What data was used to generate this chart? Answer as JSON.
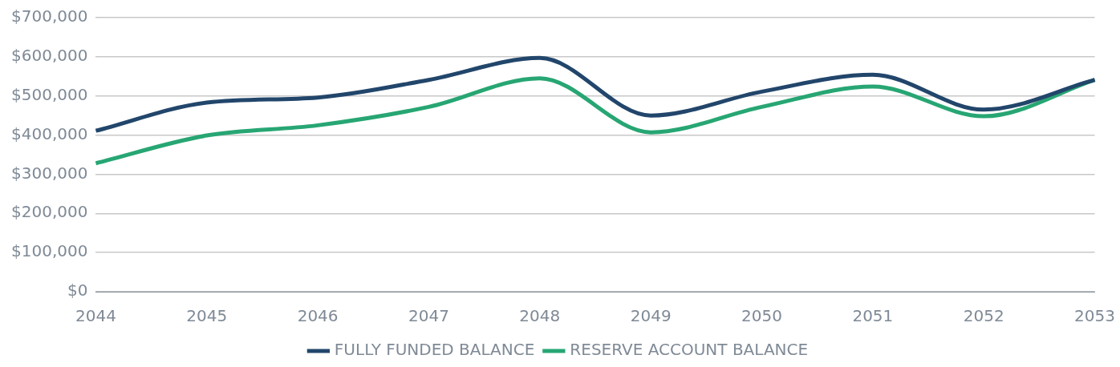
{
  "chart_data": {
    "type": "line",
    "categories": [
      "2044",
      "2045",
      "2046",
      "2047",
      "2048",
      "2049",
      "2050",
      "2051",
      "2052",
      "2053"
    ],
    "series": [
      {
        "name": "FULLY FUNDED BALANCE",
        "color": "#22466b",
        "values": [
          411000,
          483000,
          496000,
          541000,
          597000,
          450000,
          511000,
          554000,
          465000,
          541000
        ]
      },
      {
        "name": "RESERVE ACCOUNT BALANCE",
        "color": "#27a673",
        "values": [
          328000,
          399000,
          425000,
          472000,
          545000,
          407000,
          472000,
          524000,
          448000,
          541000
        ]
      }
    ],
    "ylim": [
      0,
      700000
    ],
    "yticks": [
      {
        "value": 0,
        "label": "$0"
      },
      {
        "value": 100000,
        "label": "$100,000"
      },
      {
        "value": 200000,
        "label": "$200,000"
      },
      {
        "value": 300000,
        "label": "$300,000"
      },
      {
        "value": 400000,
        "label": "$400,000"
      },
      {
        "value": 500000,
        "label": "$500,000"
      },
      {
        "value": 600000,
        "label": "$600,000"
      },
      {
        "value": 700000,
        "label": "$700,000"
      }
    ],
    "grid": "y",
    "legend": "bottom",
    "marker": "none",
    "line_style": "solid"
  }
}
